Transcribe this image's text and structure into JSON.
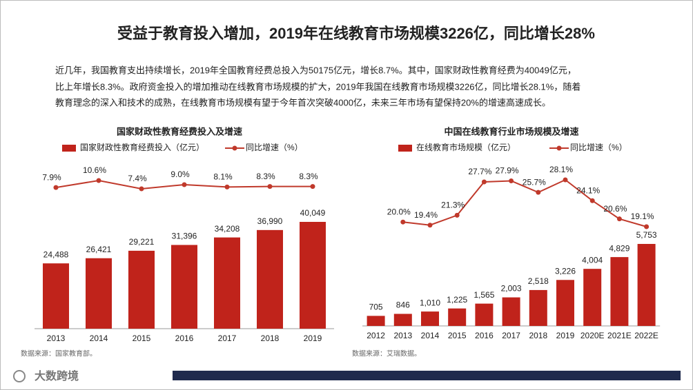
{
  "header": {
    "title": "受益于教育投入增加，2019年在线教育市场规模3226亿，同比增长28%",
    "body": [
      "近几年，我国教育支出持续增长，2019年全国教育经费总投入为50175亿元，增长8.7%。其中，国家财政性教育经费为40049亿元，",
      "比上年增长8.3%。政府资金投入的增加推动在线教育市场规模的扩大，2019年我国在线教育市场规模3226亿，同比增长28.1%，随着",
      "教育理念的深入和技术的成熟，在线教育市场规模有望于今年首次突破4000亿，未来三年市场有望保持20%的增速高速成长。"
    ]
  },
  "chart_data": [
    {
      "type": "bar-line",
      "title": "国家财政性教育经费投入及增速",
      "categories": [
        "2013",
        "2014",
        "2015",
        "2016",
        "2017",
        "2018",
        "2019"
      ],
      "series": [
        {
          "name": "国家财政性教育经费投入（亿元）",
          "color": "#c0231b",
          "type": "bar",
          "values": [
            24488,
            26421,
            29221,
            31396,
            34208,
            36990,
            40049
          ],
          "value_labels": [
            "24,488",
            "26,421",
            "29,221",
            "31,396",
            "34,208",
            "36,990",
            "40,049"
          ]
        },
        {
          "name": "同比增速（%）",
          "color": "#c0392b",
          "type": "line",
          "axis": "y2",
          "values": [
            7.9,
            10.6,
            7.4,
            9.0,
            8.1,
            8.3,
            8.3
          ],
          "value_labels": [
            "7.9%",
            "10.6%",
            "7.4%",
            "9.0%",
            "8.1%",
            "8.3%",
            "8.3%"
          ]
        }
      ],
      "source": "数据来源：国家教育部。"
    },
    {
      "type": "bar-line",
      "title": "中国在线教育行业市场规模及增速",
      "categories": [
        "2012",
        "2013",
        "2014",
        "2015",
        "2016",
        "2017",
        "2018",
        "2019",
        "2020E",
        "2021E",
        "2022E"
      ],
      "series": [
        {
          "name": "在线教育市场规模（亿元）",
          "color": "#c0231b",
          "type": "bar",
          "values": [
            705,
            846,
            1010,
            1225,
            1565,
            2003,
            2518,
            3226,
            4004,
            4829,
            5753
          ],
          "value_labels": [
            "705",
            "846",
            "1,010",
            "1,225",
            "1,565",
            "2,003",
            "2,518",
            "3,226",
            "4,004",
            "4,829",
            "5,753"
          ]
        },
        {
          "name": "同比增速（%）",
          "color": "#c0392b",
          "type": "line",
          "axis": "y2",
          "values": [
            null,
            20.0,
            19.4,
            21.3,
            27.7,
            27.9,
            25.7,
            28.1,
            24.1,
            20.6,
            19.1
          ],
          "value_labels": [
            null,
            "20.0%",
            "19.4%",
            "21.3%",
            "27.7%",
            "27.9%",
            "25.7%",
            "28.1%",
            "24.1%",
            "20.6%",
            "19.1%"
          ]
        }
      ],
      "source": "数据来源：艾瑞数据。"
    }
  ],
  "footer": {
    "logo": "大数跨境"
  }
}
